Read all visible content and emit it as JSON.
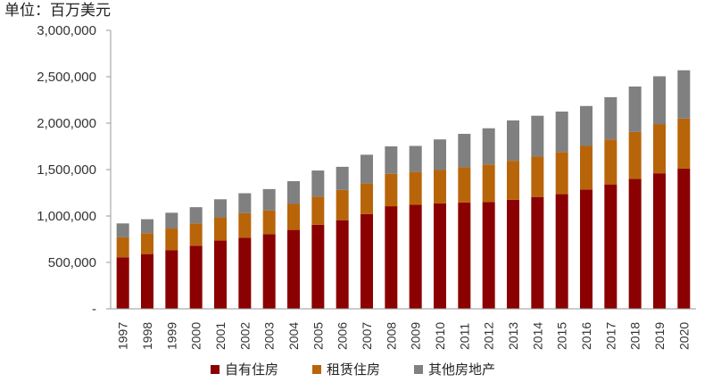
{
  "chart_data": {
    "type": "bar",
    "stacked": true,
    "unit_label": "单位：百万美元",
    "categories": [
      "1997",
      "1998",
      "1999",
      "2000",
      "2001",
      "2002",
      "2003",
      "2004",
      "2005",
      "2006",
      "2007",
      "2008",
      "2009",
      "2010",
      "2011",
      "2012",
      "2013",
      "2014",
      "2015",
      "2016",
      "2017",
      "2018",
      "2019",
      "2020"
    ],
    "series": [
      {
        "name": "自有住房",
        "color": "#8B0000",
        "values": [
          555000,
          590000,
          630000,
          680000,
          735000,
          765000,
          805000,
          850000,
          905000,
          955000,
          1020000,
          1105000,
          1120000,
          1135000,
          1145000,
          1150000,
          1175000,
          1205000,
          1235000,
          1285000,
          1340000,
          1400000,
          1460000,
          1510000
        ]
      },
      {
        "name": "租赁住房",
        "color": "#B8650A",
        "values": [
          215000,
          225000,
          235000,
          240000,
          250000,
          265000,
          255000,
          280000,
          305000,
          325000,
          330000,
          350000,
          355000,
          360000,
          380000,
          405000,
          420000,
          435000,
          455000,
          470000,
          485000,
          505000,
          530000,
          540000
        ]
      },
      {
        "name": "其他房地产",
        "color": "#808080",
        "values": [
          150000,
          150000,
          170000,
          175000,
          195000,
          215000,
          230000,
          245000,
          280000,
          250000,
          310000,
          295000,
          280000,
          330000,
          360000,
          390000,
          435000,
          440000,
          435000,
          430000,
          455000,
          490000,
          515000,
          520000
        ]
      }
    ],
    "yticks": [
      "-",
      "500,000",
      "1,000,000",
      "1,500,000",
      "2,000,000",
      "2,500,000",
      "3,000,000"
    ],
    "ylim": [
      0,
      3000000
    ],
    "legend_position": "bottom",
    "grid": false
  }
}
